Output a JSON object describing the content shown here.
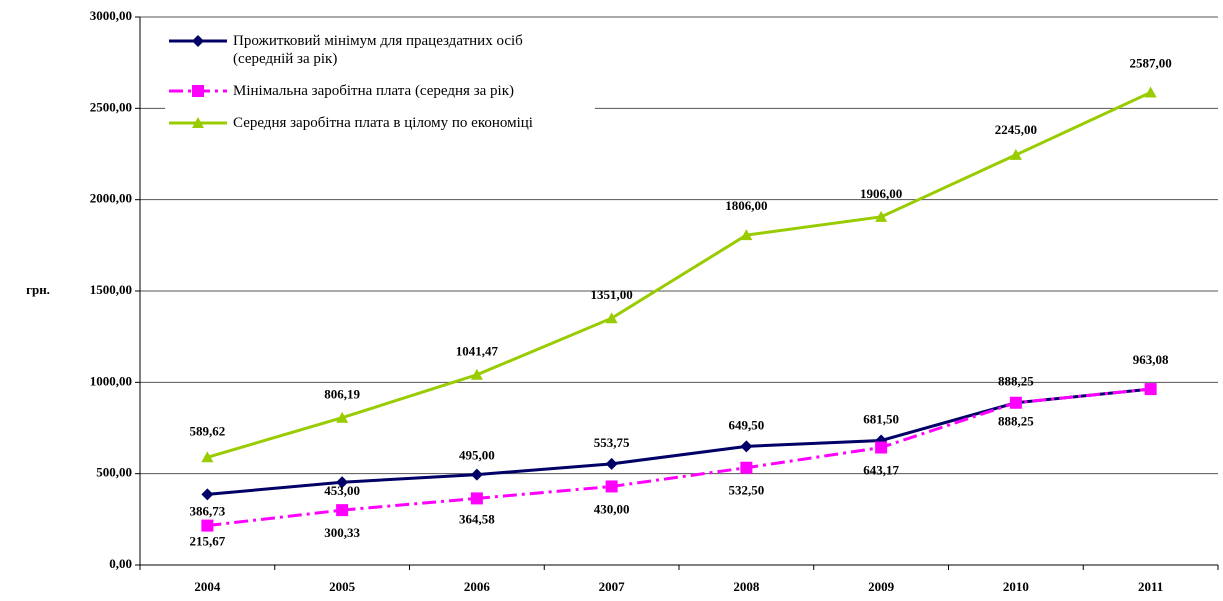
{
  "chart_data": {
    "type": "line",
    "y_label": "грн.",
    "categories": [
      "2004",
      "2005",
      "2006",
      "2007",
      "2008",
      "2009",
      "2010",
      "2011"
    ],
    "ylim": [
      0,
      3000
    ],
    "yticks": [
      {
        "value": 0,
        "label": "0,00"
      },
      {
        "value": 500,
        "label": "500,00"
      },
      {
        "value": 1000,
        "label": "1000,00"
      },
      {
        "value": 1500,
        "label": "1500,00"
      },
      {
        "value": 2000,
        "label": "2000,00"
      },
      {
        "value": 2500,
        "label": "2500,00"
      },
      {
        "value": 3000,
        "label": "3000,00"
      }
    ],
    "grid": true,
    "legend": "top-left",
    "series": [
      {
        "name": "Прожитковий мінімум для працездатних осіб\n(середній за рік)",
        "color": "#000066",
        "marker": "diamond",
        "dash": "solid",
        "values": [
          386.73,
          453.0,
          495.0,
          553.75,
          649.5,
          681.5,
          888.25,
          963.08
        ],
        "value_labels": [
          "386,73",
          "453,00",
          "495,00",
          "553,75",
          "649,50",
          "681,50",
          "888,25",
          "963,08"
        ]
      },
      {
        "name": "Мінімальна заробітна плата (середня за рік)",
        "color": "#ff00ff",
        "marker": "square",
        "dash": "dashdot",
        "values": [
          215.67,
          300.33,
          364.58,
          430.0,
          532.5,
          643.17,
          888.25,
          963.08
        ],
        "value_labels": [
          "215,67",
          "300,33",
          "364,58",
          "430,00",
          "532,50",
          "643,17",
          "888,25",
          null
        ]
      },
      {
        "name": "Середня заробітна плата в цілому по економіці",
        "color": "#99cc00",
        "marker": "triangle",
        "dash": "solid",
        "values": [
          589.62,
          806.19,
          1041.47,
          1351.0,
          1806.0,
          1906.0,
          2245.0,
          2587.0
        ],
        "value_labels": [
          "589,62",
          "806,19",
          "1041,47",
          "1351,00",
          "1806,00",
          "1906,00",
          "2245,00",
          "2587,00"
        ]
      }
    ]
  }
}
